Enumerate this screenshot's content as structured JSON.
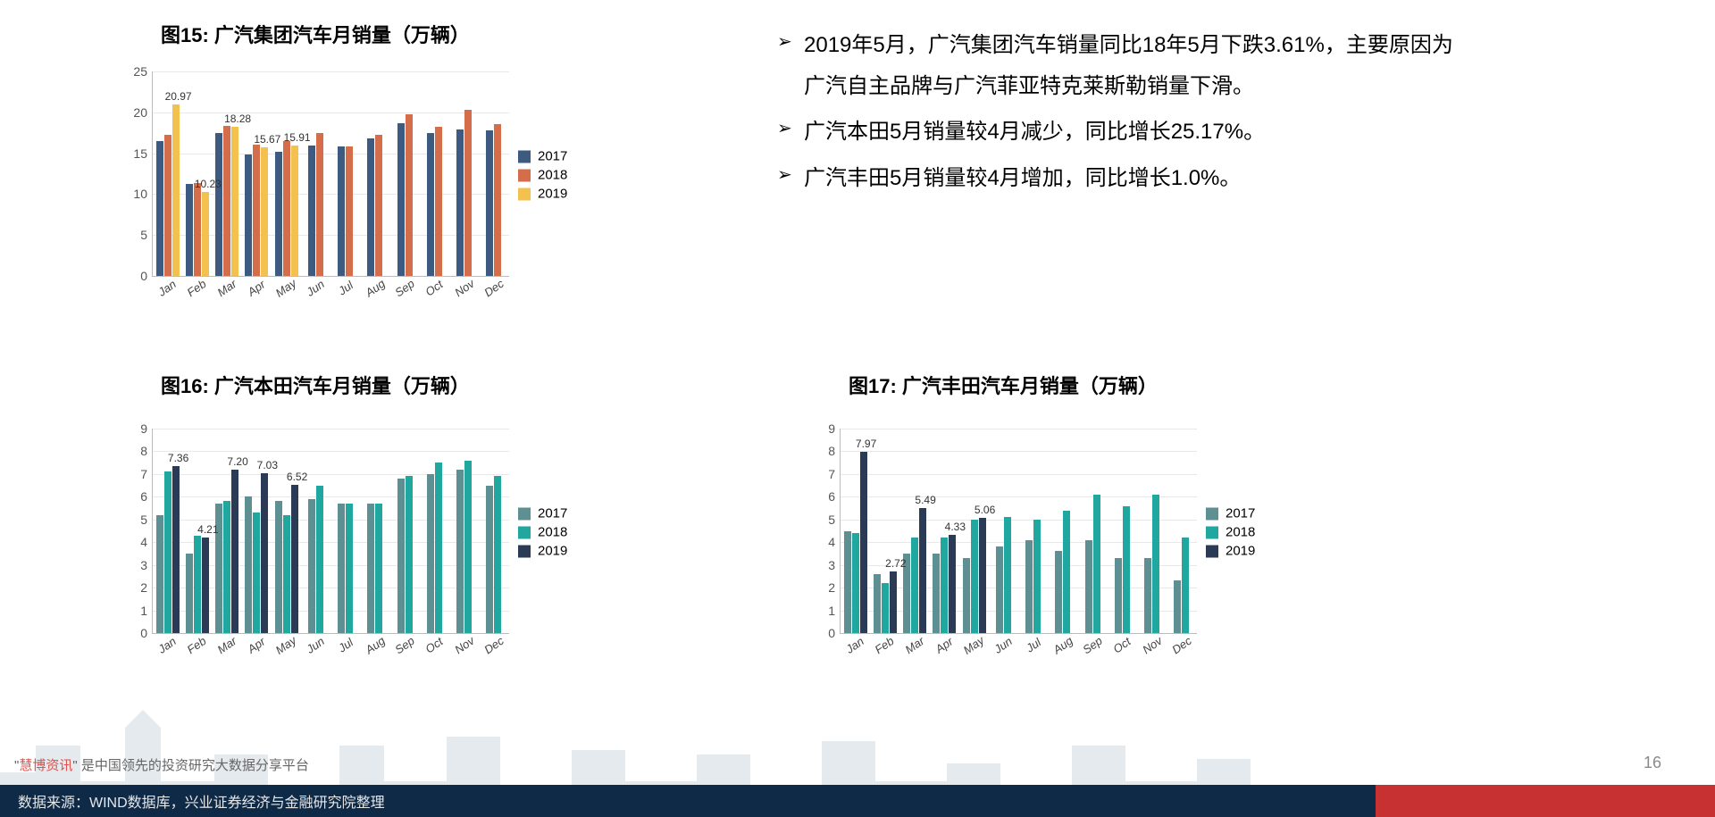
{
  "titles": {
    "c15": "图15:   广汽集团汽车月销量（万辆）",
    "c16": "图16:   广汽本田汽车月销量（万辆）",
    "c17": "图17:   广汽丰田汽车月销量（万辆）"
  },
  "bullets": [
    "2019年5月，广汽集团汽车销量同比18年5月下跌3.61%，主要原因为广汽自主品牌与广汽菲亚特克莱斯勒销量下滑。",
    "广汽本田5月销量较4月减少，同比增长25.17%。",
    "广汽丰田5月销量较4月增加，同比增长1.0%。"
  ],
  "legend_labels": [
    "2017",
    "2018",
    "2019"
  ],
  "months": [
    "Jan",
    "Feb",
    "Mar",
    "Apr",
    "May",
    "Jun",
    "Jul",
    "Aug",
    "Sep",
    "Oct",
    "Nov",
    "Dec"
  ],
  "colors": {
    "s2017": "#3d5a80",
    "s2018": "#d36d4a",
    "s2019": "#f2c14e",
    "s2017_teal": "#5e8f92",
    "s2018_teal": "#1fa7a0",
    "s2019_navy": "#2b3a55",
    "grid": "#e8e8e8",
    "axis": "#bbbbbb",
    "text": "#000000",
    "footer_bg": "#0e2a47",
    "footer_red": "#c73132"
  },
  "chart15": {
    "type": "bar",
    "ylim": [
      0,
      25
    ],
    "ytick_step": 5,
    "series_colors": [
      "#3d5a80",
      "#d36d4a",
      "#f2c14e"
    ],
    "data": {
      "2017": [
        16.5,
        11.3,
        17.5,
        14.8,
        15.2,
        15.9,
        15.8,
        16.8,
        18.7,
        17.5,
        17.9,
        17.8
      ],
      "2018": [
        17.2,
        11.4,
        18.3,
        16.0,
        16.5,
        17.5,
        15.8,
        17.3,
        19.8,
        18.2,
        20.3,
        18.6
      ],
      "2019": [
        20.97,
        10.23,
        18.28,
        15.67,
        15.91,
        null,
        null,
        null,
        null,
        null,
        null,
        null
      ]
    },
    "value_labels": [
      {
        "series": 2,
        "month": 0,
        "text": "20.97"
      },
      {
        "series": 2,
        "month": 1,
        "text": "10.23"
      },
      {
        "series": 2,
        "month": 2,
        "text": "18.28"
      },
      {
        "series": 2,
        "month": 3,
        "text": "15.67"
      },
      {
        "series": 2,
        "month": 4,
        "text": "15.91"
      }
    ]
  },
  "chart16": {
    "type": "bar",
    "ylim": [
      0,
      9
    ],
    "ytick_step": 1,
    "series_colors": [
      "#5e8f92",
      "#1fa7a0",
      "#2b3a55"
    ],
    "data": {
      "2017": [
        5.2,
        3.5,
        5.7,
        6.0,
        5.8,
        5.9,
        5.7,
        5.7,
        6.8,
        7.0,
        7.2,
        6.5
      ],
      "2018": [
        7.1,
        4.3,
        5.8,
        5.3,
        5.2,
        6.5,
        5.7,
        5.7,
        6.9,
        7.5,
        7.6,
        6.9
      ],
      "2019": [
        7.36,
        4.21,
        7.2,
        7.03,
        6.52,
        null,
        null,
        null,
        null,
        null,
        null,
        null
      ]
    },
    "value_labels": [
      {
        "series": 2,
        "month": 0,
        "text": "7.36"
      },
      {
        "series": 2,
        "month": 1,
        "text": "4.21"
      },
      {
        "series": 2,
        "month": 2,
        "text": "7.20"
      },
      {
        "series": 2,
        "month": 3,
        "text": "7.03"
      },
      {
        "series": 2,
        "month": 4,
        "text": "6.52"
      }
    ]
  },
  "chart17": {
    "type": "bar",
    "ylim": [
      0,
      9
    ],
    "ytick_step": 1,
    "series_colors": [
      "#5e8f92",
      "#1fa7a0",
      "#2b3a55"
    ],
    "data": {
      "2017": [
        4.5,
        2.6,
        3.5,
        3.5,
        3.3,
        3.8,
        4.1,
        3.6,
        4.1,
        3.3,
        3.3,
        2.3
      ],
      "2018": [
        4.4,
        2.2,
        4.2,
        4.2,
        5.0,
        5.1,
        5.0,
        5.4,
        6.1,
        5.6,
        6.1,
        4.2
      ],
      "2019": [
        7.97,
        2.72,
        5.49,
        4.33,
        5.06,
        null,
        null,
        null,
        null,
        null,
        null,
        null
      ]
    },
    "value_labels": [
      {
        "series": 2,
        "month": 0,
        "text": "7.97"
      },
      {
        "series": 2,
        "month": 1,
        "text": "2.72"
      },
      {
        "series": 2,
        "month": 2,
        "text": "5.49"
      },
      {
        "series": 2,
        "month": 3,
        "text": "4.33"
      },
      {
        "series": 2,
        "month": 4,
        "text": "5.06"
      }
    ]
  },
  "watermark": {
    "prefix": "\"",
    "highlight": "慧博资讯",
    "suffix": "\"  是中国领先的投资研究大数据分享平台"
  },
  "footer_text": "数据来源：WIND数据库，兴业证券经济与金融研究院整理",
  "page_number": "16"
}
